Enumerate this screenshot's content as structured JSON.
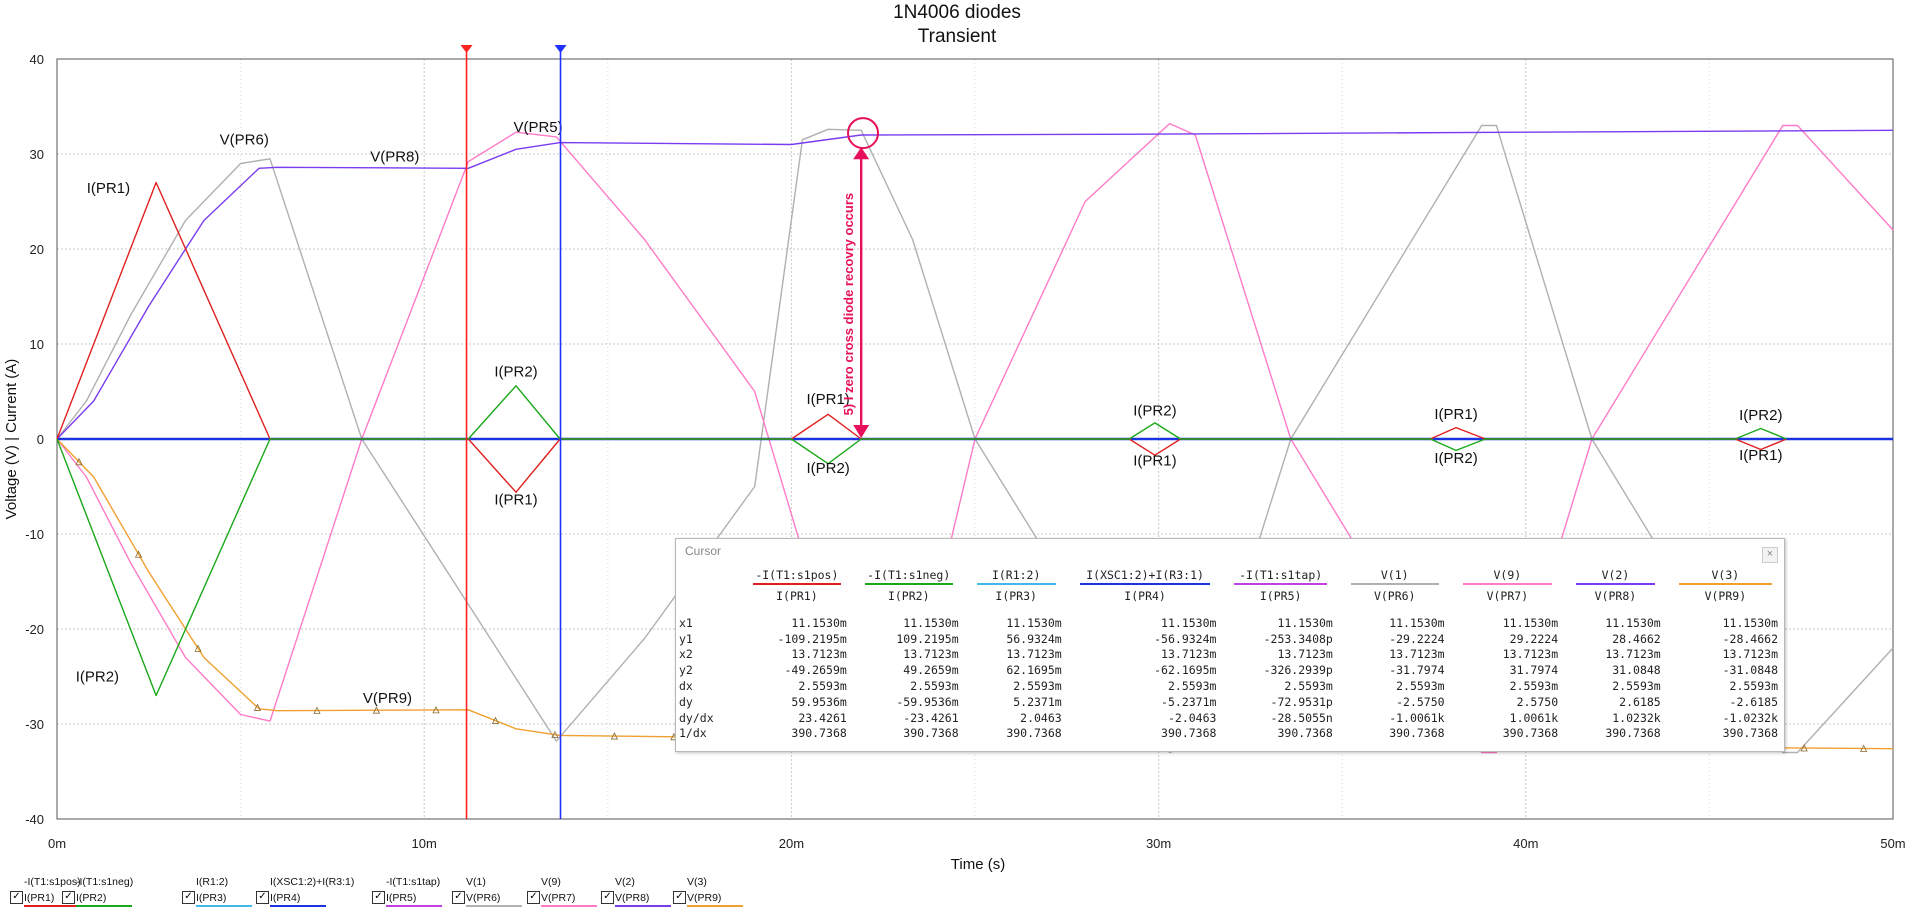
{
  "chart_data": {
    "type": "line",
    "title": "1N4006 diodes",
    "subtitle": "Transient",
    "xlabel": "Time (s)",
    "ylabel": "Voltage (V) | Current (A)",
    "xlim": [
      0,
      50
    ],
    "ylim": [
      -40,
      40
    ],
    "x_ticks": [
      {
        "v": 0,
        "label": "0m"
      },
      {
        "v": 10,
        "label": "10m"
      },
      {
        "v": 20,
        "label": "20m"
      },
      {
        "v": 30,
        "label": "30m"
      },
      {
        "v": 40,
        "label": "40m"
      },
      {
        "v": 50,
        "label": "50m"
      }
    ],
    "y_ticks": [
      {
        "v": 40,
        "label": "40"
      },
      {
        "v": 30,
        "label": "30"
      },
      {
        "v": 20,
        "label": "20"
      },
      {
        "v": 10,
        "label": "10"
      },
      {
        "v": 0,
        "label": "0"
      },
      {
        "v": -10,
        "label": "-10"
      },
      {
        "v": -20,
        "label": "-20"
      },
      {
        "v": -30,
        "label": "-30"
      },
      {
        "v": -40,
        "label": "-40"
      }
    ],
    "grid": true,
    "series": [
      {
        "name": "V(PR6)",
        "color": "#b0b0b0",
        "points": [
          [
            0,
            0
          ],
          [
            0.8,
            4
          ],
          [
            2,
            13
          ],
          [
            3.5,
            23
          ],
          [
            5,
            29
          ],
          [
            5.8,
            29.5
          ],
          [
            8.3,
            0
          ],
          [
            13.6,
            -31.8
          ],
          [
            16,
            -21
          ],
          [
            19,
            -5
          ],
          [
            20.3,
            31.5
          ],
          [
            21,
            32.6
          ],
          [
            21.9,
            32.5
          ],
          [
            23.3,
            21
          ],
          [
            25,
            0
          ],
          [
            30.3,
            -33
          ],
          [
            31,
            -32
          ],
          [
            33.6,
            0
          ],
          [
            38.8,
            33
          ],
          [
            39.2,
            33
          ],
          [
            41.8,
            0
          ],
          [
            47,
            -33
          ],
          [
            47.4,
            -33
          ],
          [
            50,
            -22
          ]
        ]
      },
      {
        "name": "V(PR7)",
        "color": "#ff7bc8",
        "points": [
          [
            0,
            0
          ],
          [
            0.8,
            -4
          ],
          [
            2,
            -13
          ],
          [
            3.5,
            -23
          ],
          [
            5,
            -29
          ],
          [
            5.8,
            -29.7
          ],
          [
            8.3,
            0
          ],
          [
            11.2,
            29.2
          ],
          [
            12.5,
            32.3
          ],
          [
            13.6,
            31.8
          ],
          [
            16,
            21
          ],
          [
            19,
            5
          ],
          [
            21.9,
            -32.5
          ],
          [
            23,
            -32.5
          ],
          [
            25,
            0
          ],
          [
            28,
            25
          ],
          [
            30.3,
            33.2
          ],
          [
            31,
            32
          ],
          [
            33.6,
            0
          ],
          [
            38.8,
            -33
          ],
          [
            39.2,
            -33
          ],
          [
            41.8,
            0
          ],
          [
            47,
            33
          ],
          [
            47.4,
            33
          ],
          [
            50,
            22
          ]
        ]
      },
      {
        "name": "V(PR8)",
        "color": "#7a3cf0",
        "points": [
          [
            0,
            0
          ],
          [
            1,
            4
          ],
          [
            2.5,
            14
          ],
          [
            4,
            23
          ],
          [
            5.5,
            28.5
          ],
          [
            6,
            28.6
          ],
          [
            11.2,
            28.5
          ],
          [
            12.5,
            30.5
          ],
          [
            13.7,
            31.2
          ],
          [
            20,
            31
          ],
          [
            21.9,
            32
          ],
          [
            30,
            32.1
          ],
          [
            40,
            32.3
          ],
          [
            50,
            32.5
          ]
        ]
      },
      {
        "name": "V(PR9)",
        "color": "#f0a030",
        "points": [
          [
            0,
            0
          ],
          [
            1,
            -4
          ],
          [
            2.5,
            -14
          ],
          [
            4,
            -23
          ],
          [
            5.5,
            -28.4
          ],
          [
            6,
            -28.6
          ],
          [
            11.2,
            -28.5
          ],
          [
            12.5,
            -30.5
          ],
          [
            13.7,
            -31.2
          ],
          [
            20,
            -31.5
          ],
          [
            25,
            -31.8
          ],
          [
            30,
            -32.1
          ],
          [
            40,
            -32.3
          ],
          [
            50,
            -32.6
          ]
        ]
      },
      {
        "name": "I(PR4)",
        "color": "#1a35e0",
        "points": [
          [
            0,
            0
          ],
          [
            50,
            0
          ]
        ]
      },
      {
        "name": "I(PR1)",
        "color": "#e02020",
        "points": [
          [
            0,
            0
          ],
          [
            2.7,
            27
          ],
          [
            5.8,
            0
          ],
          [
            11.2,
            0
          ],
          [
            12.5,
            -5.6
          ],
          [
            13.7,
            0
          ],
          [
            20,
            0
          ],
          [
            21,
            2.6
          ],
          [
            21.9,
            0
          ],
          [
            29.2,
            0
          ],
          [
            29.9,
            -1.7
          ],
          [
            30.6,
            0
          ],
          [
            37.4,
            0
          ],
          [
            38.1,
            1.2
          ],
          [
            38.9,
            0
          ],
          [
            45.7,
            0
          ],
          [
            46.4,
            -1.1
          ],
          [
            47.1,
            0
          ]
        ]
      },
      {
        "name": "I(PR2)",
        "color": "#1aa81a",
        "points": [
          [
            0,
            0
          ],
          [
            2.7,
            -27
          ],
          [
            5.8,
            0
          ],
          [
            11.2,
            0
          ],
          [
            12.5,
            5.6
          ],
          [
            13.7,
            0
          ],
          [
            20,
            0
          ],
          [
            21,
            -2.6
          ],
          [
            21.9,
            0
          ],
          [
            29.2,
            0
          ],
          [
            29.9,
            1.7
          ],
          [
            30.6,
            0
          ],
          [
            37.4,
            0
          ],
          [
            38.1,
            -1.2
          ],
          [
            38.9,
            0
          ],
          [
            45.7,
            0
          ],
          [
            46.4,
            1.1
          ],
          [
            47.1,
            0
          ]
        ]
      }
    ],
    "series_labels": [
      {
        "text": "V(PR6)",
        "x": 5.1,
        "y": 31.0
      },
      {
        "text": "V(PR8)",
        "x": 9.2,
        "y": 29.2
      },
      {
        "text": "V(PR5)",
        "x": 13.1,
        "y": 32.3
      },
      {
        "text": "I(PR1)",
        "x": 1.4,
        "y": 25.9
      },
      {
        "text": "I(PR2)",
        "x": 12.5,
        "y": 6.6
      },
      {
        "text": "I(PR1)",
        "x": 12.5,
        "y": -6.9
      },
      {
        "text": "I(PR1)",
        "x": 21.0,
        "y": 3.7
      },
      {
        "text": "I(PR2)",
        "x": 21.0,
        "y": -3.6
      },
      {
        "text": "I(PR2)",
        "x": 29.9,
        "y": 2.5
      },
      {
        "text": "I(PR1)",
        "x": 29.9,
        "y": -2.8
      },
      {
        "text": "I(PR1)",
        "x": 38.1,
        "y": 2.1
      },
      {
        "text": "I(PR2)",
        "x": 38.1,
        "y": -2.5
      },
      {
        "text": "I(PR2)",
        "x": 46.4,
        "y": 2.0
      },
      {
        "text": "I(PR1)",
        "x": 46.4,
        "y": -2.2
      },
      {
        "text": "I(PR2)",
        "x": 1.1,
        "y": -25.5
      },
      {
        "text": "V(PR9)",
        "x": 9.0,
        "y": -27.8
      }
    ],
    "cursors": [
      {
        "name": "x1",
        "x": 11.153,
        "color": "#ff2020"
      },
      {
        "name": "x2",
        "x": 13.7123,
        "color": "#2030ff"
      }
    ],
    "annotation": {
      "text": "5) I zero cross diode recovry occurs",
      "color": "#e8105a",
      "arrow_x": 21.9,
      "arrow_y_from": 30.5,
      "arrow_y_to": 0,
      "circle_x": 21.95,
      "circle_y": 32.2
    }
  },
  "cursor_panel": {
    "title": "Cursor",
    "close_glyph": "×",
    "columns": [
      {
        "expr": "-I(T1:s1pos)",
        "probe": "I(PR1)",
        "color": "#e02020"
      },
      {
        "expr": "-I(T1:s1neg)",
        "probe": "I(PR2)",
        "color": "#1aa81a"
      },
      {
        "expr": "I(R1:2)",
        "probe": "I(PR3)",
        "color": "#40b8e8"
      },
      {
        "expr": "I(XSC1:2)+I(R3:1)",
        "probe": "I(PR4)",
        "color": "#1a35e0"
      },
      {
        "expr": "-I(T1:s1tap)",
        "probe": "I(PR5)",
        "color": "#c040e0"
      },
      {
        "expr": "V(1)",
        "probe": "V(PR6)",
        "color": "#b0b0b0"
      },
      {
        "expr": "V(9)",
        "probe": "V(PR7)",
        "color": "#ff7bc8"
      },
      {
        "expr": "V(2)",
        "probe": "V(PR8)",
        "color": "#7a3cf0"
      },
      {
        "expr": "V(3)",
        "probe": "V(PR9)",
        "color": "#f0a030"
      }
    ],
    "rows": [
      {
        "label": "x1",
        "values": [
          "11.1530m",
          "11.1530m",
          "11.1530m",
          "11.1530m",
          "11.1530m",
          "11.1530m",
          "11.1530m",
          "11.1530m",
          "11.1530m"
        ]
      },
      {
        "label": "y1",
        "values": [
          "-109.2195m",
          "109.2195m",
          "56.9324m",
          "-56.9324m",
          "-253.3408p",
          "-29.2224",
          "29.2224",
          "28.4662",
          "-28.4662"
        ]
      },
      {
        "label": "x2",
        "values": [
          "13.7123m",
          "13.7123m",
          "13.7123m",
          "13.7123m",
          "13.7123m",
          "13.7123m",
          "13.7123m",
          "13.7123m",
          "13.7123m"
        ]
      },
      {
        "label": "y2",
        "values": [
          "-49.2659m",
          "49.2659m",
          "62.1695m",
          "-62.1695m",
          "-326.2939p",
          "-31.7974",
          "31.7974",
          "31.0848",
          "-31.0848"
        ]
      },
      {
        "label": "dx",
        "values": [
          "2.5593m",
          "2.5593m",
          "2.5593m",
          "2.5593m",
          "2.5593m",
          "2.5593m",
          "2.5593m",
          "2.5593m",
          "2.5593m"
        ]
      },
      {
        "label": "dy",
        "values": [
          "59.9536m",
          "-59.9536m",
          "5.2371m",
          "-5.2371m",
          "-72.9531p",
          "-2.5750",
          "2.5750",
          "2.6185",
          "-2.6185"
        ]
      },
      {
        "label": "dy/dx",
        "values": [
          "23.4261",
          "-23.4261",
          "2.0463",
          "-2.0463",
          "-28.5055n",
          "-1.0061k",
          "1.0061k",
          "1.0232k",
          "-1.0232k"
        ]
      },
      {
        "label": "1/dx",
        "values": [
          "390.7368",
          "390.7368",
          "390.7368",
          "390.7368",
          "390.7368",
          "390.7368",
          "390.7368",
          "390.7368",
          "390.7368"
        ]
      }
    ]
  },
  "legend": [
    {
      "expr": "-I(T1:s1pos)",
      "probe": "I(PR1)",
      "color": "#e02020",
      "checked": "✓"
    },
    {
      "expr": "-I(T1:s1neg)",
      "probe": "I(PR2)",
      "color": "#1aa81a",
      "checked": "✓"
    },
    {
      "expr": "I(R1:2)",
      "probe": "I(PR3)",
      "color": "#40b8e8",
      "checked": "✓"
    },
    {
      "expr": "I(XSC1:2)+I(R3:1)",
      "probe": "I(PR4)",
      "color": "#1a35e0",
      "checked": "✓"
    },
    {
      "expr": "-I(T1:s1tap)",
      "probe": "I(PR5)",
      "color": "#c040e0",
      "checked": "✓"
    },
    {
      "expr": "V(1)",
      "probe": "V(PR6)",
      "color": "#b0b0b0",
      "checked": "✓"
    },
    {
      "expr": "V(9)",
      "probe": "V(PR7)",
      "color": "#ff7bc8",
      "checked": "✓"
    },
    {
      "expr": "V(2)",
      "probe": "V(PR8)",
      "color": "#7a3cf0",
      "checked": "✓"
    },
    {
      "expr": "V(3)",
      "probe": "V(PR9)",
      "color": "#f0a030",
      "checked": "✓"
    }
  ]
}
